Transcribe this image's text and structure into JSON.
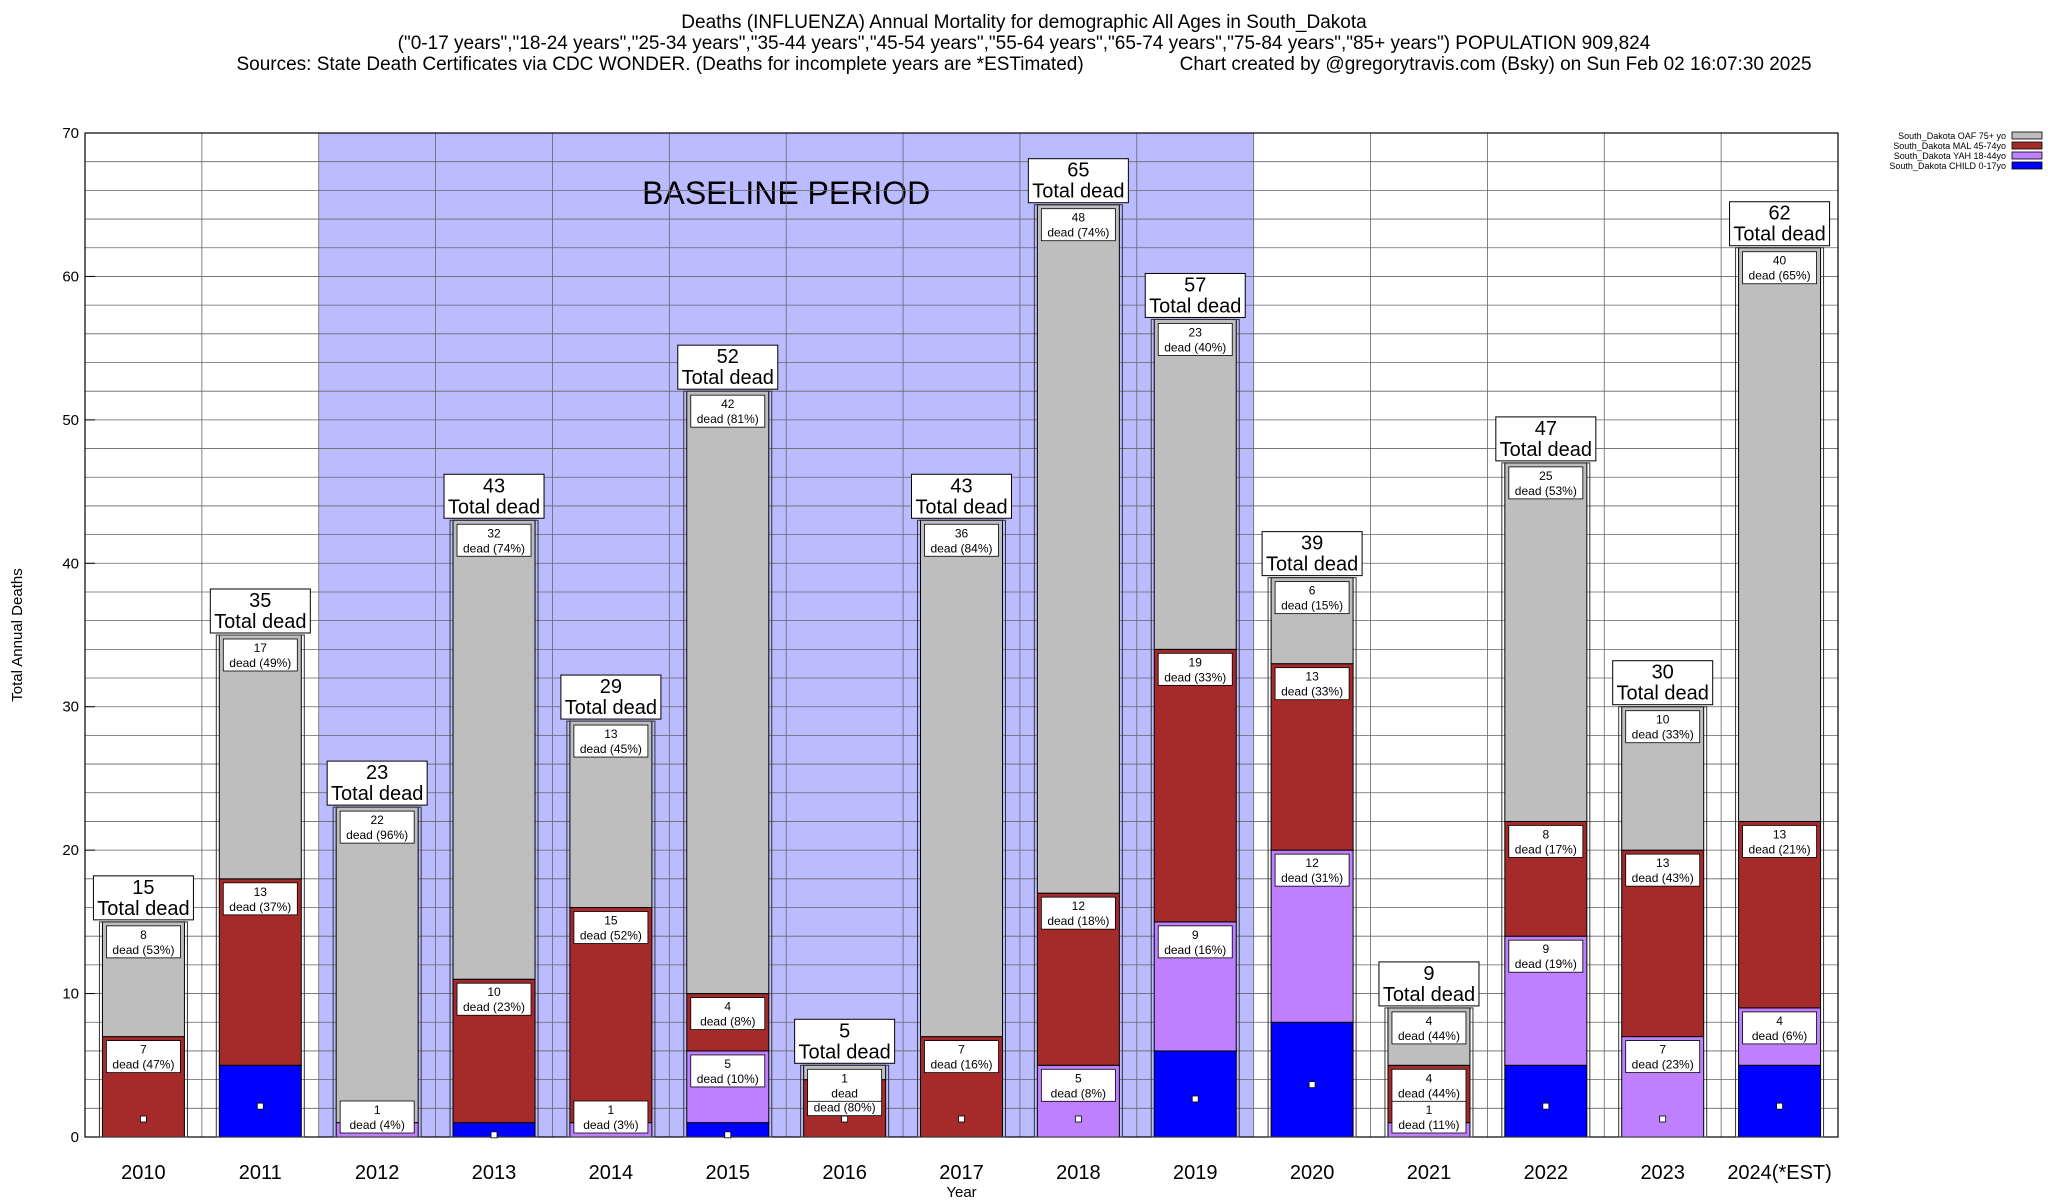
{
  "header": {
    "title": "Deaths (INFLUENZA) Annual Mortality for demographic All Ages in South_Dakota",
    "subtitle": "(\"0-17 years\",\"18-24 years\",\"25-34 years\",\"35-44 years\",\"45-54 years\",\"55-64 years\",\"65-74 years\",\"75-84 years\",\"85+ years\") POPULATION 909,824",
    "sources": "Sources: State Death Certificates via CDC WONDER. (Deaths for incomplete years are *ESTimated)",
    "credit": "Chart created by @gregorytravis.com (Bsky) on Sun Feb 02 16:07:30 2025"
  },
  "colors": {
    "child": "#0000ff",
    "yah": "#bf80ff",
    "mal": "#a52a2a",
    "oaf": "#bebebe",
    "baseline": "#bbbbff"
  },
  "chart_data": {
    "type": "bar",
    "stacked": true,
    "xlabel": "Year",
    "ylabel": "Total Annual Deaths",
    "ylim": [
      0,
      70
    ],
    "yticks": [
      0,
      10,
      20,
      30,
      40,
      50,
      60,
      70
    ],
    "grid": "horizontal",
    "legend_position": "top-right",
    "baseline": {
      "label": "BASELINE PERIOD",
      "from": "2012",
      "to": "2019"
    },
    "total_suffix": "Total dead",
    "categories": [
      "2010",
      "2011",
      "2012",
      "2013",
      "2014",
      "2015",
      "2016",
      "2017",
      "2018",
      "2019",
      "2020",
      "2021",
      "2022",
      "2023",
      "2024(*EST)"
    ],
    "series": [
      {
        "name": "South_Dakota CHILD 0-17yo",
        "key": "child",
        "values": [
          0,
          5,
          0,
          1,
          0,
          1,
          0,
          0,
          0,
          6,
          8,
          0,
          5,
          0,
          5
        ]
      },
      {
        "name": "South_Dakota YAH 18-44yo",
        "key": "yah",
        "values": [
          0,
          0,
          1,
          0,
          1,
          5,
          0,
          0,
          5,
          9,
          12,
          1,
          9,
          7,
          4
        ]
      },
      {
        "name": "South_Dakota MAL 45-74yo",
        "key": "mal",
        "values": [
          7,
          13,
          0,
          10,
          15,
          4,
          4,
          7,
          12,
          19,
          13,
          4,
          8,
          13,
          13
        ]
      },
      {
        "name": "South_Dakota OAF 75+ yo",
        "key": "oaf",
        "values": [
          8,
          17,
          22,
          32,
          13,
          42,
          1,
          36,
          48,
          23,
          6,
          4,
          25,
          10,
          40
        ]
      }
    ],
    "totals": [
      15,
      35,
      23,
      43,
      29,
      52,
      5,
      43,
      65,
      57,
      39,
      9,
      47,
      30,
      62
    ],
    "segment_labels": [
      [
        null,
        null,
        {
          "v": 7,
          "t": "dead (47%)"
        },
        {
          "v": 8,
          "t": "dead (53%)"
        }
      ],
      [
        null,
        null,
        {
          "v": 13,
          "t": "dead (37%)"
        },
        {
          "v": 17,
          "t": "dead (49%)"
        }
      ],
      [
        null,
        {
          "v": 1,
          "t": "dead (4%)"
        },
        null,
        {
          "v": 22,
          "t": "dead (96%)"
        }
      ],
      [
        null,
        null,
        {
          "v": 10,
          "t": "dead (23%)"
        },
        {
          "v": 32,
          "t": "dead (74%)"
        }
      ],
      [
        null,
        {
          "v": 1,
          "t": "dead (3%)"
        },
        {
          "v": 15,
          "t": "dead (52%)"
        },
        {
          "v": 13,
          "t": "dead (45%)"
        }
      ],
      [
        null,
        {
          "v": 5,
          "t": "dead (10%)"
        },
        {
          "v": 4,
          "t": "dead (8%)"
        },
        {
          "v": 42,
          "t": "dead (81%)"
        }
      ],
      [
        null,
        null,
        {
          "v": 4,
          "t": "dead (80%)"
        },
        {
          "v": 1,
          "t": "dead"
        }
      ],
      [
        null,
        null,
        {
          "v": 7,
          "t": "dead (16%)"
        },
        {
          "v": 36,
          "t": "dead (84%)"
        }
      ],
      [
        null,
        {
          "v": 5,
          "t": "dead (8%)"
        },
        {
          "v": 12,
          "t": "dead (18%)"
        },
        {
          "v": 48,
          "t": "dead (74%)"
        }
      ],
      [
        null,
        {
          "v": 9,
          "t": "dead (16%)"
        },
        {
          "v": 19,
          "t": "dead (33%)"
        },
        {
          "v": 23,
          "t": "dead (40%)"
        }
      ],
      [
        null,
        {
          "v": 12,
          "t": "dead (31%)"
        },
        {
          "v": 13,
          "t": "dead (33%)"
        },
        {
          "v": 6,
          "t": "dead (15%)"
        }
      ],
      [
        null,
        {
          "v": 1,
          "t": "dead (11%)"
        },
        {
          "v": 4,
          "t": "dead (44%)"
        },
        {
          "v": 4,
          "t": "dead (44%)"
        }
      ],
      [
        null,
        {
          "v": 9,
          "t": "dead (19%)"
        },
        {
          "v": 8,
          "t": "dead (17%)"
        },
        {
          "v": 25,
          "t": "dead (53%)"
        }
      ],
      [
        null,
        {
          "v": 7,
          "t": "dead (23%)"
        },
        {
          "v": 13,
          "t": "dead (43%)"
        },
        {
          "v": 10,
          "t": "dead (33%)"
        }
      ],
      [
        null,
        {
          "v": 4,
          "t": "dead (6%)"
        },
        {
          "v": 13,
          "t": "dead (21%)"
        },
        {
          "v": 40,
          "t": "dead (65%)"
        }
      ]
    ]
  }
}
